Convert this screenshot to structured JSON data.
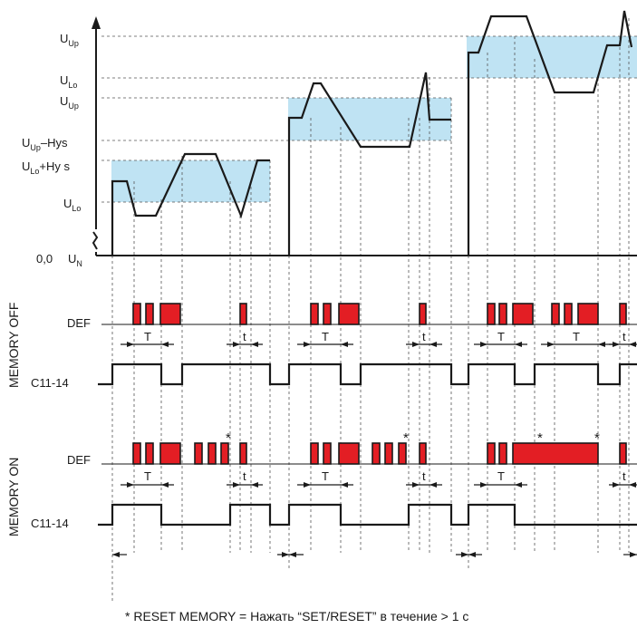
{
  "labels": {
    "u_up_1": "U",
    "u_up_1_sub": "Up",
    "u_lo_1": "U",
    "u_lo_1_sub": "Lo",
    "u_up_2": "U",
    "u_up_2_sub": "Up",
    "u_up_hys": "U",
    "u_up_hys_sub": "Up",
    "u_up_hys_suffix": "–Hys",
    "u_lo_hys": "U",
    "u_lo_hys_sub": "Lo",
    "u_lo_hys_suffix": "+Hy s",
    "u_lo_3": "U",
    "u_lo_3_sub": "Lo",
    "zero": "0,0",
    "u_n": "U",
    "u_n_sub": "N"
  },
  "sections": {
    "memory_off": "MEMORY OFF",
    "memory_on": "MEMORY ON"
  },
  "rows": {
    "def_off": "DEF",
    "c11_off": "C11-14",
    "def_on": "DEF",
    "c11_on": "C11-14"
  },
  "timings": {
    "T": "T",
    "t": "t"
  },
  "markers": {
    "reset": "*"
  },
  "footnote": "* RESET MEMORY = Нажать “SET/RESET” в течение > 1 с",
  "colors": {
    "band": "#bfe3f3",
    "pulse": "#e31e24"
  }
}
